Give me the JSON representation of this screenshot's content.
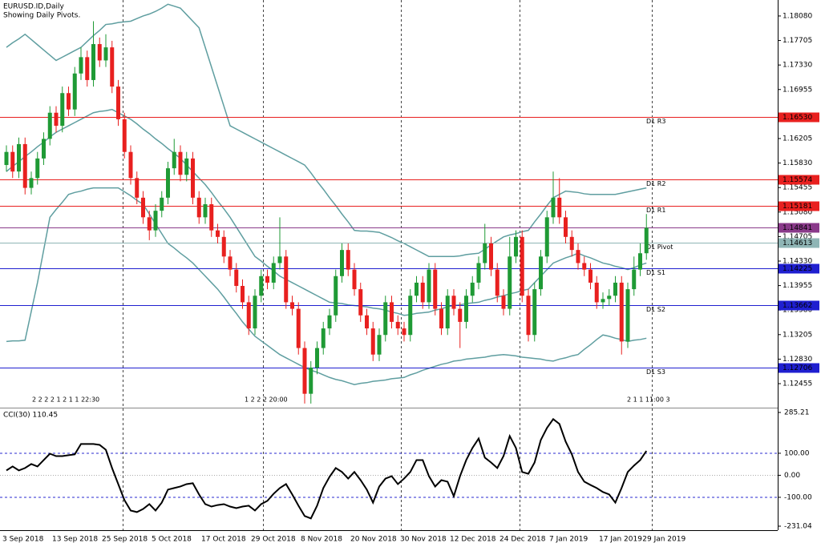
{
  "chart_data": [
    {
      "type": "candlestick",
      "title": "EURUSD.ID,Daily",
      "subtitle": "Showing Daily Pivots.",
      "categories": [
        "3 Sep 2018",
        null,
        null,
        null,
        null,
        null,
        null,
        null,
        "13 Sep 2018",
        null,
        null,
        null,
        null,
        null,
        null,
        null,
        "25 Sep 2018",
        null,
        null,
        null,
        null,
        null,
        null,
        null,
        "5 Oct 2018",
        null,
        null,
        null,
        null,
        null,
        null,
        null,
        "17 Oct 2018",
        null,
        null,
        null,
        null,
        null,
        null,
        null,
        "29 Oct 2018",
        null,
        null,
        null,
        null,
        null,
        null,
        null,
        "8 Nov 2018",
        null,
        null,
        null,
        null,
        null,
        null,
        null,
        "20 Nov 2018",
        null,
        null,
        null,
        null,
        null,
        null,
        null,
        "30 Nov 2018",
        null,
        null,
        null,
        null,
        null,
        null,
        null,
        "12 Dec 2018",
        null,
        null,
        null,
        null,
        null,
        null,
        null,
        "24 Dec 2018",
        null,
        null,
        null,
        null,
        null,
        null,
        null,
        "7 Jan 2019",
        null,
        null,
        null,
        null,
        null,
        null,
        null,
        "17 Jan 2019",
        null,
        null,
        null,
        null,
        null,
        null,
        "29 Jan 2019"
      ],
      "open": [
        1.158,
        1.16,
        1.157,
        1.1612,
        1.1545,
        1.156,
        1.159,
        1.162,
        1.166,
        1.164,
        1.169,
        1.1665,
        1.172,
        1.1745,
        1.171,
        1.1765,
        1.174,
        1.176,
        1.17,
        1.165,
        1.16,
        1.156,
        1.153,
        1.15,
        1.148,
        1.151,
        1.153,
        1.1575,
        1.16,
        1.1565,
        1.159,
        1.153,
        1.15,
        1.152,
        1.148,
        1.147,
        1.144,
        1.142,
        1.1395,
        1.137,
        1.133,
        1.138,
        1.141,
        1.14,
        1.143,
        1.144,
        1.137,
        1.136,
        1.13,
        1.123,
        1.127,
        1.13,
        1.133,
        1.135,
        1.141,
        1.145,
        1.142,
        1.139,
        1.135,
        1.133,
        1.129,
        1.132,
        1.137,
        1.134,
        1.133,
        1.132,
        1.138,
        1.14,
        1.137,
        1.142,
        1.136,
        1.133,
        1.138,
        1.136,
        1.134,
        1.138,
        1.14,
        1.143,
        1.146,
        1.142,
        1.138,
        1.136,
        1.144,
        1.147,
        1.138,
        1.132,
        1.139,
        1.144,
        1.15,
        1.153,
        1.15,
        1.147,
        1.145,
        1.143,
        1.142,
        1.14,
        1.137,
        1.1375,
        1.138,
        1.14,
        1.131,
        1.139,
        1.142,
        1.1445
      ],
      "high": [
        1.161,
        1.161,
        1.1622,
        1.1622,
        1.157,
        1.16,
        1.163,
        1.167,
        1.167,
        1.17,
        1.17,
        1.173,
        1.176,
        1.1755,
        1.18,
        1.1775,
        1.178,
        1.177,
        1.171,
        1.166,
        1.161,
        1.157,
        1.154,
        1.151,
        1.152,
        1.154,
        1.1585,
        1.162,
        1.161,
        1.16,
        1.16,
        1.154,
        1.153,
        1.153,
        1.149,
        1.148,
        1.145,
        1.143,
        1.1405,
        1.138,
        1.139,
        1.142,
        1.142,
        1.144,
        1.15,
        1.145,
        1.138,
        1.137,
        1.131,
        1.128,
        1.131,
        1.134,
        1.136,
        1.142,
        1.146,
        1.146,
        1.143,
        1.14,
        1.136,
        1.134,
        1.133,
        1.138,
        1.138,
        1.135,
        1.134,
        1.139,
        1.141,
        1.141,
        1.143,
        1.143,
        1.137,
        1.139,
        1.139,
        1.137,
        1.139,
        1.141,
        1.144,
        1.149,
        1.147,
        1.143,
        1.139,
        1.147,
        1.148,
        1.148,
        1.139,
        1.14,
        1.145,
        1.151,
        1.157,
        1.156,
        1.151,
        1.148,
        1.146,
        1.144,
        1.143,
        1.141,
        1.1385,
        1.139,
        1.141,
        1.141,
        1.14,
        1.144,
        1.146,
        1.1505
      ],
      "low": [
        1.157,
        1.156,
        1.156,
        1.1535,
        1.1535,
        1.155,
        1.158,
        1.161,
        1.163,
        1.163,
        1.1655,
        1.1655,
        1.171,
        1.17,
        1.17,
        1.173,
        1.173,
        1.169,
        1.164,
        1.159,
        1.155,
        1.152,
        1.149,
        1.1465,
        1.147,
        1.15,
        1.152,
        1.1565,
        1.1555,
        1.1555,
        1.152,
        1.149,
        1.149,
        1.147,
        1.146,
        1.143,
        1.141,
        1.1385,
        1.136,
        1.132,
        1.132,
        1.137,
        1.139,
        1.139,
        1.142,
        1.136,
        1.135,
        1.129,
        1.1215,
        1.1215,
        1.126,
        1.129,
        1.132,
        1.134,
        1.14,
        1.141,
        1.138,
        1.134,
        1.132,
        1.128,
        1.128,
        1.131,
        1.133,
        1.132,
        1.131,
        1.131,
        1.137,
        1.136,
        1.136,
        1.135,
        1.132,
        1.132,
        1.135,
        1.13,
        1.133,
        1.137,
        1.139,
        1.142,
        1.141,
        1.137,
        1.135,
        1.135,
        1.143,
        1.137,
        1.131,
        1.131,
        1.138,
        1.143,
        1.149,
        1.149,
        1.146,
        1.144,
        1.142,
        1.141,
        1.139,
        1.136,
        1.136,
        1.1365,
        1.137,
        1.129,
        1.13,
        1.138,
        1.141,
        1.1435
      ],
      "close": [
        1.16,
        1.157,
        1.1612,
        1.1545,
        1.156,
        1.159,
        1.162,
        1.166,
        1.164,
        1.169,
        1.1665,
        1.172,
        1.1745,
        1.171,
        1.1765,
        1.174,
        1.176,
        1.17,
        1.165,
        1.16,
        1.156,
        1.153,
        1.15,
        1.148,
        1.151,
        1.153,
        1.1575,
        1.16,
        1.1565,
        1.159,
        1.153,
        1.15,
        1.152,
        1.148,
        1.147,
        1.144,
        1.142,
        1.1395,
        1.137,
        1.133,
        1.138,
        1.141,
        1.14,
        1.143,
        1.144,
        1.137,
        1.136,
        1.13,
        1.123,
        1.127,
        1.13,
        1.133,
        1.135,
        1.141,
        1.145,
        1.142,
        1.139,
        1.135,
        1.133,
        1.129,
        1.132,
        1.137,
        1.134,
        1.133,
        1.132,
        1.138,
        1.14,
        1.137,
        1.142,
        1.136,
        1.133,
        1.138,
        1.136,
        1.134,
        1.138,
        1.14,
        1.143,
        1.146,
        1.142,
        1.138,
        1.136,
        1.144,
        1.147,
        1.138,
        1.132,
        1.139,
        1.144,
        1.15,
        1.153,
        1.15,
        1.147,
        1.145,
        1.143,
        1.142,
        1.14,
        1.137,
        1.1375,
        1.138,
        1.14,
        1.131,
        1.139,
        1.142,
        1.1445,
        1.1484
      ],
      "up_color": "#1f9a35",
      "down_color": "#e8201f",
      "bands": {
        "color": "#5f9ea0",
        "upper": [
          1.176,
          1.1767,
          1.1773,
          1.178,
          1.1772,
          1.1764,
          1.1756,
          1.1748,
          1.174,
          1.1745,
          1.175,
          1.1755,
          1.176,
          1.1769,
          1.1778,
          1.1786,
          1.1795,
          1.1796,
          1.1798,
          1.1799,
          1.18,
          1.1804,
          1.1808,
          1.1811,
          1.1815,
          1.182,
          1.1826,
          1.1823,
          1.182,
          1.181,
          1.18,
          1.179,
          1.176,
          1.173,
          1.17,
          1.167,
          1.164,
          1.1635,
          1.163,
          1.1625,
          1.162,
          1.1615,
          1.161,
          1.1605,
          1.16,
          1.1595,
          1.159,
          1.1585,
          1.158,
          1.1568,
          1.1555,
          1.1543,
          1.153,
          1.1518,
          1.1505,
          1.1493,
          1.148,
          1.1479,
          1.1479,
          1.1478,
          1.1477,
          1.1473,
          1.1469,
          1.1464,
          1.146,
          1.1455,
          1.145,
          1.1445,
          1.144,
          1.144,
          1.144,
          1.144,
          1.144,
          1.1441,
          1.1443,
          1.1444,
          1.1445,
          1.1451,
          1.1458,
          1.1464,
          1.147,
          1.1473,
          1.1475,
          1.1478,
          1.148,
          1.1493,
          1.1505,
          1.1518,
          1.153,
          1.1535,
          1.154,
          1.1539,
          1.1538,
          1.1536,
          1.1535,
          1.1535,
          1.1535,
          1.1535,
          1.1535,
          1.1537,
          1.1539,
          1.1541,
          1.1543,
          1.1545
        ],
        "middle": [
          1.157,
          1.1578,
          1.1585,
          1.1593,
          1.16,
          1.1608,
          1.1615,
          1.1623,
          1.163,
          1.1635,
          1.164,
          1.1645,
          1.165,
          1.1655,
          1.166,
          1.1662,
          1.1663,
          1.1665,
          1.166,
          1.1655,
          1.165,
          1.1643,
          1.1635,
          1.1628,
          1.162,
          1.1613,
          1.1605,
          1.1598,
          1.159,
          1.158,
          1.157,
          1.156,
          1.155,
          1.1538,
          1.1525,
          1.1513,
          1.15,
          1.1485,
          1.147,
          1.1455,
          1.144,
          1.1433,
          1.1425,
          1.1418,
          1.141,
          1.1405,
          1.14,
          1.1395,
          1.139,
          1.1385,
          1.138,
          1.1375,
          1.137,
          1.1369,
          1.1368,
          1.1366,
          1.1365,
          1.1364,
          1.1363,
          1.1361,
          1.136,
          1.1358,
          1.1355,
          1.1353,
          1.135,
          1.1351,
          1.1353,
          1.1354,
          1.1355,
          1.1358,
          1.136,
          1.1363,
          1.1365,
          1.1366,
          1.1368,
          1.1369,
          1.137,
          1.1373,
          1.1375,
          1.1378,
          1.138,
          1.1383,
          1.1385,
          1.1388,
          1.139,
          1.14,
          1.141,
          1.142,
          1.143,
          1.1434,
          1.1438,
          1.1441,
          1.1445,
          1.1441,
          1.1438,
          1.1434,
          1.143,
          1.1428,
          1.1425,
          1.1423,
          1.142,
          1.1423,
          1.1427,
          1.143
        ],
        "lower": [
          1.131,
          1.1311,
          1.1311,
          1.1312,
          1.1356,
          1.14,
          1.145,
          1.15,
          1.1512,
          1.1523,
          1.1535,
          1.1538,
          1.154,
          1.1543,
          1.1545,
          1.1545,
          1.1545,
          1.1545,
          1.1545,
          1.1539,
          1.1533,
          1.1526,
          1.152,
          1.1505,
          1.149,
          1.1475,
          1.146,
          1.1453,
          1.1445,
          1.1438,
          1.143,
          1.142,
          1.141,
          1.14,
          1.139,
          1.1378,
          1.1365,
          1.1353,
          1.134,
          1.1329,
          1.1318,
          1.1311,
          1.1304,
          1.1297,
          1.129,
          1.1285,
          1.128,
          1.1275,
          1.127,
          1.1266,
          1.1263,
          1.1259,
          1.1255,
          1.1252,
          1.125,
          1.1247,
          1.1244,
          1.1246,
          1.1247,
          1.1249,
          1.125,
          1.1251,
          1.1253,
          1.1254,
          1.1255,
          1.1259,
          1.1262,
          1.1266,
          1.1269,
          1.1272,
          1.1275,
          1.1277,
          1.128,
          1.1281,
          1.1283,
          1.1284,
          1.1285,
          1.1286,
          1.1288,
          1.1289,
          1.129,
          1.1289,
          1.1288,
          1.1286,
          1.1285,
          1.1284,
          1.1283,
          1.1281,
          1.128,
          1.1283,
          1.1285,
          1.1288,
          1.129,
          1.1298,
          1.1305,
          1.1313,
          1.132,
          1.1318,
          1.1315,
          1.1313,
          1.131,
          1.1312,
          1.1313,
          1.1315
        ]
      },
      "pivots": [
        {
          "name": "D1 R3",
          "value": 1.1653,
          "label": "1.16530",
          "color": "#e8201f"
        },
        {
          "name": "D1 R2",
          "value": 1.15574,
          "label": "1.15574",
          "color": "#e8201f"
        },
        {
          "name": "D1 R1",
          "value": 1.15181,
          "label": "1.15181",
          "color": "#e8201f"
        },
        {
          "name": "D1 Pivot",
          "value": 1.14613,
          "label": "1.14613",
          "color": "#8fb5b5"
        },
        {
          "name": "D1 S1",
          "value": 1.14225,
          "label": "1.14225",
          "color": "#1f1fd0"
        },
        {
          "name": "D1 S2",
          "value": 1.13662,
          "label": "1.13662",
          "color": "#1f1fd0"
        },
        {
          "name": "D1 S3",
          "value": 1.12706,
          "label": "1.12706",
          "color": "#1f1fd0"
        }
      ],
      "bid": {
        "value": 1.14841,
        "label": "1.14841",
        "color": "#8a3a8a"
      },
      "timers": [
        "2 2 2 2 1 2 1 1 22:30",
        "1 2 2 2 20:00",
        "2 1 1 11:00 3"
      ],
      "ylim": [
        1.121,
        1.183
      ],
      "yticks": [
        {
          "value": 1.1808,
          "label": "1.18080"
        },
        {
          "value": 1.17705,
          "label": "1.17705"
        },
        {
          "value": 1.1733,
          "label": "1.17330"
        },
        {
          "value": 1.16955,
          "label": "1.16955"
        },
        {
          "value": 1.16205,
          "label": "1.16205"
        },
        {
          "value": 1.1583,
          "label": "1.15830"
        },
        {
          "value": 1.15455,
          "label": "1.15455"
        },
        {
          "value": 1.1508,
          "label": "1.15080"
        },
        {
          "value": 1.14705,
          "label": "1.14705"
        },
        {
          "value": 1.1433,
          "label": "1.14330"
        },
        {
          "value": 1.13955,
          "label": "1.13955"
        },
        {
          "value": 1.1358,
          "label": "1.13580"
        },
        {
          "value": 1.13205,
          "label": "1.13205"
        },
        {
          "value": 1.1283,
          "label": "1.12830"
        },
        {
          "value": 1.12455,
          "label": "1.12455"
        }
      ]
    },
    {
      "type": "line",
      "title": "CCI(30) 110.45",
      "color": "#000000",
      "level_color": "#2a2ad0",
      "values": [
        22,
        40,
        22,
        33,
        51,
        40,
        69,
        98,
        87,
        87,
        91,
        95,
        142,
        142,
        142,
        138,
        116,
        33,
        -40,
        -113,
        -160,
        -167,
        -153,
        -131,
        -160,
        -124,
        -65,
        -58,
        -51,
        -40,
        -36,
        -87,
        -131,
        -142,
        -135,
        -131,
        -142,
        -149,
        -142,
        -138,
        -160,
        -131,
        -116,
        -84,
        -58,
        -40,
        -87,
        -138,
        -185,
        -196,
        -138,
        -58,
        -7,
        33,
        15,
        -15,
        15,
        -22,
        -65,
        -124,
        -51,
        -15,
        -4,
        -40,
        -15,
        15,
        69,
        69,
        -4,
        -51,
        -22,
        -29,
        -95,
        -4,
        69,
        124,
        167,
        80,
        58,
        33,
        87,
        178,
        124,
        15,
        7,
        58,
        160,
        215,
        255,
        233,
        153,
        95,
        15,
        -29,
        -44,
        -58,
        -76,
        -87,
        -124,
        -58,
        15,
        44,
        69,
        110.45
      ],
      "ylim": [
        -231.04,
        285.21
      ],
      "yticks": [
        285.21,
        {
          "value": 100,
          "label": "100.00"
        },
        {
          "value": 0,
          "label": "0.00"
        },
        {
          "value": -100,
          "label": "-100.00"
        },
        -231.04
      ]
    }
  ]
}
